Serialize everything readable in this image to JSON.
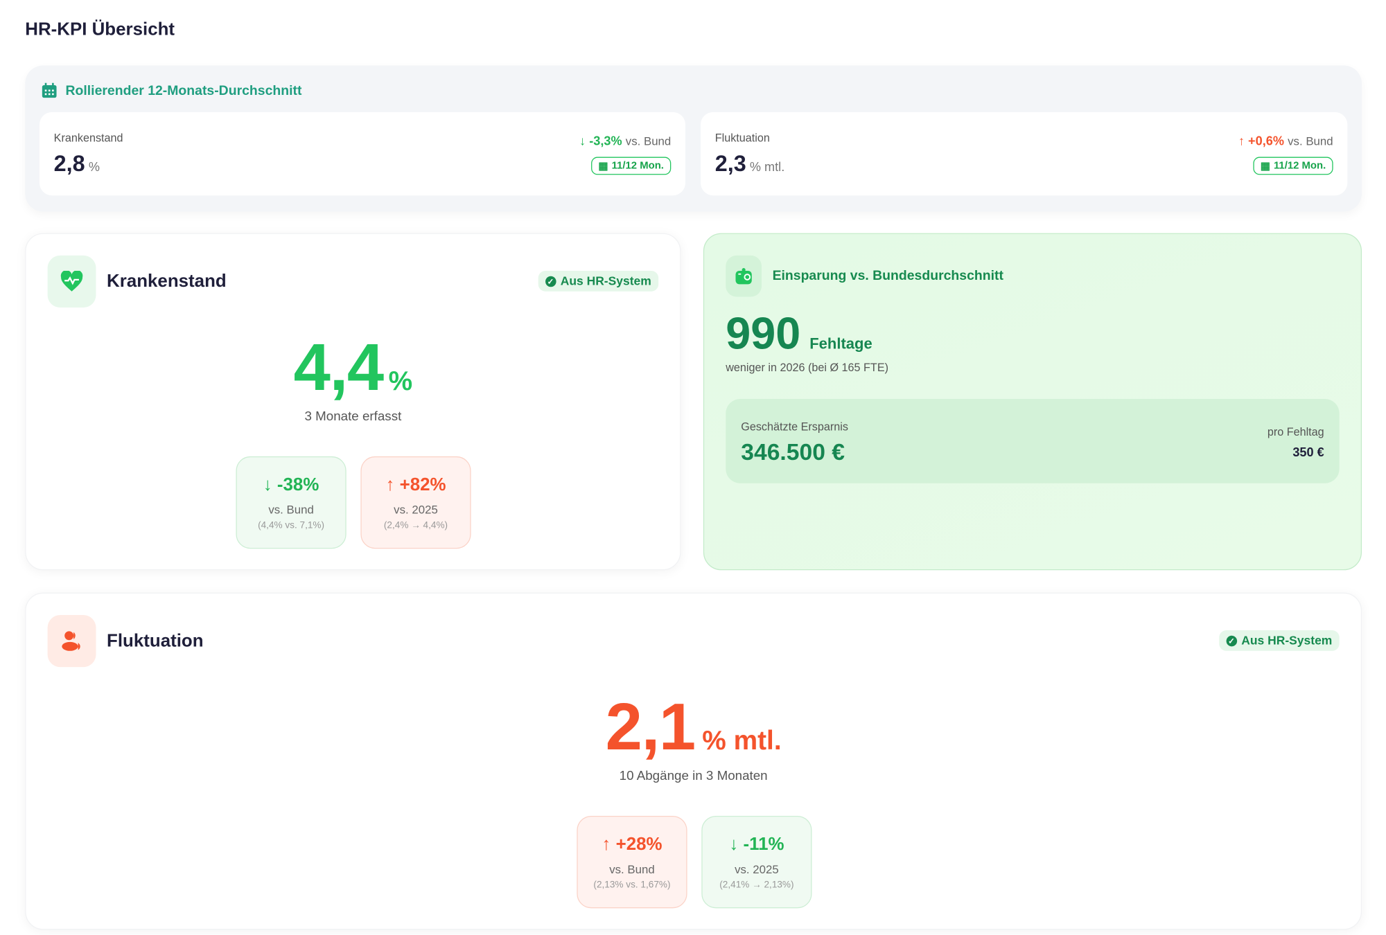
{
  "page_title": "HR-KPI Übersicht",
  "rolling": {
    "title": "Rollierender 12-Monats-Durchschnitt",
    "cards": [
      {
        "label": "Krankenstand",
        "value": "2,8",
        "unit": "%",
        "delta": "-3,3%",
        "delta_suffix": "vs. Bund",
        "period": "11/12 Mon."
      },
      {
        "label": "Fluktuation",
        "value": "2,3",
        "unit": "% mtl.",
        "delta": "+0,6%",
        "delta_suffix": "vs. Bund",
        "period": "11/12 Mon."
      }
    ]
  },
  "krankenstand": {
    "title": "Krankenstand",
    "badge": "Aus HR-System",
    "value": "4,4",
    "unit": "%",
    "subtitle": "3 Monate erfasst",
    "comparisons": [
      {
        "value": "-38%",
        "label": "vs. Bund",
        "detail": "(4,4% vs. 7,1%)"
      },
      {
        "value": "+82%",
        "label": "vs. 2025",
        "detail": "(2,4% → 4,4%)"
      }
    ]
  },
  "savings": {
    "title": "Einsparung vs. Bundesdurchschnitt",
    "value": "990",
    "unit": "Fehltage",
    "subtitle": "weniger in 2026 (bei Ø 165 FTE)",
    "estimate_label": "Geschätzte Ersparnis",
    "estimate_value": "346.500 €",
    "per_day_label": "pro Fehltag",
    "per_day_value": "350 €"
  },
  "fluktuation": {
    "title": "Fluktuation",
    "badge": "Aus HR-System",
    "value": "2,1",
    "unit": "% mtl.",
    "subtitle": "10 Abgänge in 3 Monaten",
    "comparisons": [
      {
        "value": "+28%",
        "label": "vs. Bund",
        "detail": "(2,13% vs. 1,67%)"
      },
      {
        "value": "-11%",
        "label": "vs. 2025",
        "detail": "(2,41% → 2,13%)"
      }
    ]
  },
  "colors": {
    "green": "#22c55e",
    "red": "#f4532c",
    "teal": "#1f9e80",
    "dark_green": "#178a4f"
  }
}
